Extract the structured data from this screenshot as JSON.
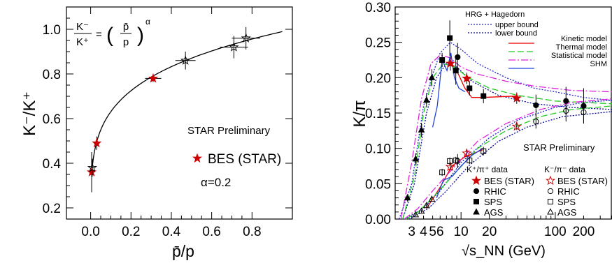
{
  "chart_data": [
    {
      "type": "scatter",
      "title": "",
      "xlabel": "p̄/p",
      "ylabel": "K⁻/K⁺",
      "xlim": [
        -0.12,
        1.0
      ],
      "ylim": [
        0.15,
        1.1
      ],
      "xticks": [
        "0.0",
        "0.2",
        "0.4",
        "0.6",
        "0.8"
      ],
      "xtick_values": [
        0.0,
        0.2,
        0.4,
        0.6,
        0.8
      ],
      "yticks": [
        "0.2",
        "0.4",
        "0.6",
        "0.8",
        "1.0"
      ],
      "ytick_values": [
        0.2,
        0.4,
        0.6,
        0.8,
        1.0
      ],
      "grid": false,
      "formula": {
        "lhs_num": "K⁻",
        "lhs_den": "K⁺",
        "rhs_num": "p̄",
        "rhs_den": "p",
        "exponent": "α"
      },
      "annotation": "STAR Preliminary",
      "legend": {
        "entry": "BES (STAR)",
        "param": "α=0.2",
        "placement": "right"
      },
      "fit": {
        "formula": "y = x^0.2",
        "x_range": [
          0.005,
          0.95
        ]
      },
      "series": [
        {
          "name": "BES (STAR)",
          "marker": "filled-star",
          "color": "#cc0000",
          "points": [
            {
              "x": 0.005,
              "y": 0.36,
              "xerr": 0.01,
              "yerr": 0.09
            },
            {
              "x": 0.03,
              "y": 0.49,
              "xerr": 0.015,
              "yerr": 0.03
            },
            {
              "x": 0.31,
              "y": 0.78,
              "xerr": 0.04,
              "yerr": 0.015
            }
          ]
        },
        {
          "marker": "open-star",
          "color": "#000000",
          "points": [
            {
              "x": 0.008,
              "y": 0.38,
              "xerr": 0.008,
              "yerr": 0.04
            },
            {
              "x": 0.47,
              "y": 0.86,
              "xerr": 0.05,
              "yerr": 0.04
            },
            {
              "x": 0.71,
              "y": 0.92,
              "xerr": 0.07,
              "yerr": 0.05
            },
            {
              "x": 0.77,
              "y": 0.96,
              "xerr": 0.07,
              "yerr": 0.05
            }
          ]
        }
      ]
    },
    {
      "type": "scatter",
      "title": "",
      "xlabel": "√s_NN (GeV)",
      "ylabel": "K/π",
      "xscale": "log",
      "xlim": [
        2,
        400
      ],
      "ylim": [
        0,
        0.3
      ],
      "xticks": [
        "3",
        "4",
        "5",
        "6",
        "10",
        "20",
        "100",
        "200"
      ],
      "xtick_values": [
        3,
        4,
        5,
        6,
        10,
        20,
        100,
        200
      ],
      "yticks": [
        "0.00",
        "0.05",
        "0.10",
        "0.15",
        "0.20",
        "0.25",
        "0.30"
      ],
      "ytick_values": [
        0,
        0.05,
        0.1,
        0.15,
        0.2,
        0.25,
        0.3
      ],
      "grid": false,
      "annotation": "STAR Preliminary",
      "legend_top": {
        "title": "HRG + Hagedorn",
        "entries": [
          "upper bound",
          "lower bound"
        ]
      },
      "legend_models": [
        "Kinetic model",
        "Thermal model",
        "Statistical model",
        "SHM"
      ],
      "legend_data_kplus": {
        "title": "K⁺/π⁺ data",
        "entries": [
          "BES (STAR)",
          "RHIC",
          "SPS",
          "AGS"
        ]
      },
      "legend_data_kminus": {
        "title": "K⁻/π⁻ data",
        "entries": [
          "BES (STAR)",
          "RHIC",
          "SPS",
          "AGS"
        ]
      },
      "series": [
        {
          "name": "K⁺/π⁺ BES (STAR)",
          "marker": "filled-star",
          "color": "#cc0000",
          "points": [
            {
              "x": 7.7,
              "y": 0.22,
              "yerr": 0.01
            },
            {
              "x": 11.5,
              "y": 0.199,
              "yerr": 0.008
            },
            {
              "x": 39,
              "y": 0.171,
              "yerr": 0.008
            }
          ]
        },
        {
          "name": "K⁺/π⁺ RHIC",
          "marker": "filled-circle",
          "color": "#000000",
          "points": [
            {
              "x": 9.2,
              "y": 0.229,
              "yerr": 0.02
            },
            {
              "x": 62.4,
              "y": 0.161,
              "yerr": 0.015
            },
            {
              "x": 130,
              "y": 0.167,
              "yerr": 0.02
            },
            {
              "x": 200,
              "y": 0.16,
              "yerr": 0.025
            }
          ]
        },
        {
          "name": "K⁺/π⁺ SPS",
          "marker": "filled-square",
          "color": "#000000",
          "points": [
            {
              "x": 6.3,
              "y": 0.225,
              "yerr": 0.01
            },
            {
              "x": 7.6,
              "y": 0.256,
              "yerr": 0.025
            },
            {
              "x": 8.8,
              "y": 0.21,
              "yerr": 0.02
            },
            {
              "x": 12.3,
              "y": 0.185,
              "yerr": 0.01
            },
            {
              "x": 17.3,
              "y": 0.174,
              "yerr": 0.01
            }
          ]
        },
        {
          "name": "K⁺/π⁺ AGS",
          "marker": "filled-triangle",
          "color": "#000000",
          "points": [
            {
              "x": 2.7,
              "y": 0.03,
              "yerr": 0.005
            },
            {
              "x": 3.3,
              "y": 0.085,
              "yerr": 0.008
            },
            {
              "x": 3.8,
              "y": 0.126,
              "yerr": 0.01
            },
            {
              "x": 4.3,
              "y": 0.168,
              "yerr": 0.01
            },
            {
              "x": 4.9,
              "y": 0.2,
              "yerr": 0.012
            }
          ]
        },
        {
          "name": "K⁻/π⁻ BES (STAR)",
          "marker": "open-star",
          "color": "#cc0000",
          "points": [
            {
              "x": 7.7,
              "y": 0.074,
              "yerr": 0.005
            },
            {
              "x": 11.5,
              "y": 0.093,
              "yerr": 0.005
            },
            {
              "x": 39,
              "y": 0.131,
              "yerr": 0.005
            }
          ]
        },
        {
          "name": "K⁻/π⁻ RHIC",
          "marker": "open-circle",
          "color": "#000000",
          "points": [
            {
              "x": 9.2,
              "y": 0.082,
              "yerr": 0.01
            },
            {
              "x": 62.4,
              "y": 0.138,
              "yerr": 0.01
            },
            {
              "x": 130,
              "y": 0.153,
              "yerr": 0.015
            },
            {
              "x": 200,
              "y": 0.151,
              "yerr": 0.015
            }
          ]
        },
        {
          "name": "K⁻/π⁻ SPS",
          "marker": "open-square",
          "color": "#000000",
          "points": [
            {
              "x": 6.3,
              "y": 0.066,
              "yerr": 0.005
            },
            {
              "x": 7.6,
              "y": 0.082,
              "yerr": 0.005
            },
            {
              "x": 8.8,
              "y": 0.083,
              "yerr": 0.005
            },
            {
              "x": 12.3,
              "y": 0.083,
              "yerr": 0.005
            },
            {
              "x": 17.3,
              "y": 0.096,
              "yerr": 0.006
            }
          ]
        },
        {
          "name": "K⁻/π⁻ AGS",
          "marker": "open-triangle",
          "color": "#000000",
          "points": [
            {
              "x": 3.3,
              "y": 0.006,
              "yerr": 0.002
            },
            {
              "x": 3.8,
              "y": 0.011,
              "yerr": 0.002
            },
            {
              "x": 4.3,
              "y": 0.019,
              "yerr": 0.003
            },
            {
              "x": 4.9,
              "y": 0.028,
              "yerr": 0.003
            }
          ]
        }
      ],
      "curves": [
        {
          "name": "upper bound",
          "style": "dotted",
          "color": "#2222cc",
          "kplus": [
            [
              2.2,
              0.0
            ],
            [
              3,
              0.05
            ],
            [
              4,
              0.16
            ],
            [
              5,
              0.205
            ],
            [
              6,
              0.235
            ],
            [
              7.7,
              0.25
            ],
            [
              10,
              0.24
            ],
            [
              15,
              0.22
            ],
            [
              30,
              0.2
            ],
            [
              60,
              0.185
            ],
            [
              100,
              0.18
            ],
            [
              200,
              0.172
            ],
            [
              400,
              0.168
            ]
          ],
          "kminus": [
            [
              2.5,
              0.0
            ],
            [
              4,
              0.015
            ],
            [
              6,
              0.04
            ],
            [
              10,
              0.08
            ],
            [
              20,
              0.115
            ],
            [
              40,
              0.14
            ],
            [
              100,
              0.158
            ],
            [
              200,
              0.165
            ],
            [
              400,
              0.168
            ]
          ]
        },
        {
          "name": "lower bound",
          "style": "dotted",
          "color": "#000099",
          "kplus": [
            [
              2.4,
              0.0
            ],
            [
              3.2,
              0.05
            ],
            [
              4.3,
              0.15
            ],
            [
              5.5,
              0.2
            ],
            [
              7,
              0.22
            ],
            [
              9,
              0.215
            ],
            [
              13,
              0.195
            ],
            [
              25,
              0.175
            ],
            [
              60,
              0.163
            ],
            [
              150,
              0.158
            ],
            [
              400,
              0.155
            ]
          ],
          "kminus": [
            [
              2.8,
              0.0
            ],
            [
              4.5,
              0.015
            ],
            [
              7,
              0.04
            ],
            [
              12,
              0.075
            ],
            [
              25,
              0.11
            ],
            [
              50,
              0.13
            ],
            [
              120,
              0.145
            ],
            [
              400,
              0.152
            ]
          ]
        },
        {
          "name": "Kinetic model",
          "style": "solid",
          "color": "#ee0000",
          "kplus": [
            [
              7.5,
              0.225
            ],
            [
              9,
              0.21
            ],
            [
              11,
              0.185
            ],
            [
              13,
              0.172
            ],
            [
              17,
              0.172
            ],
            [
              39,
              0.174
            ]
          ],
          "kminus": [
            [
              4.3,
              0.015
            ],
            [
              6,
              0.045
            ],
            [
              8,
              0.075
            ],
            [
              11,
              0.088
            ],
            [
              17,
              0.098
            ]
          ]
        },
        {
          "name": "Thermal model",
          "style": "dashed",
          "color": "#22cc22",
          "kplus": [
            [
              2.4,
              0.0
            ],
            [
              3.2,
              0.06
            ],
            [
              4,
              0.15
            ],
            [
              5,
              0.2
            ],
            [
              6.5,
              0.22
            ],
            [
              8.5,
              0.215
            ],
            [
              12,
              0.2
            ],
            [
              20,
              0.185
            ],
            [
              40,
              0.175
            ],
            [
              100,
              0.167
            ],
            [
              200,
              0.165
            ],
            [
              400,
              0.163
            ]
          ],
          "kminus": [
            [
              2.6,
              0.0
            ],
            [
              3.5,
              0.01
            ],
            [
              5,
              0.03
            ],
            [
              8,
              0.06
            ],
            [
              15,
              0.1
            ],
            [
              30,
              0.125
            ],
            [
              70,
              0.145
            ],
            [
              150,
              0.155
            ],
            [
              400,
              0.16
            ]
          ]
        },
        {
          "name": "Statistical model",
          "style": "dashdot",
          "color": "#dd22dd",
          "kplus": [
            [
              2.3,
              0.0
            ],
            [
              3,
              0.08
            ],
            [
              3.8,
              0.17
            ],
            [
              4.8,
              0.22
            ],
            [
              6,
              0.232
            ],
            [
              7.7,
              0.228
            ],
            [
              10,
              0.215
            ],
            [
              15,
              0.205
            ],
            [
              30,
              0.195
            ],
            [
              60,
              0.188
            ],
            [
              150,
              0.182
            ],
            [
              400,
              0.18
            ]
          ],
          "kminus": [
            [
              2.5,
              0.0
            ],
            [
              3.5,
              0.015
            ],
            [
              5,
              0.04
            ],
            [
              8,
              0.07
            ],
            [
              15,
              0.11
            ],
            [
              30,
              0.135
            ],
            [
              70,
              0.155
            ],
            [
              150,
              0.165
            ],
            [
              400,
              0.17
            ]
          ]
        },
        {
          "name": "SHM",
          "style": "solid",
          "color": "#2244dd",
          "kplus": [
            [
              5.0,
              0.13
            ],
            [
              5.6,
              0.16
            ],
            [
              6.3,
              0.225
            ],
            [
              7.1,
              0.21
            ],
            [
              7.8,
              0.235
            ],
            [
              8.5,
              0.2
            ],
            [
              9.5,
              0.185
            ],
            [
              11,
              0.18
            ]
          ],
          "kminus": [
            [
              5.5,
              0.03
            ],
            [
              6.5,
              0.055
            ],
            [
              8,
              0.06
            ],
            [
              10,
              0.075
            ],
            [
              13,
              0.09
            ],
            [
              17,
              0.1
            ]
          ]
        }
      ]
    }
  ]
}
